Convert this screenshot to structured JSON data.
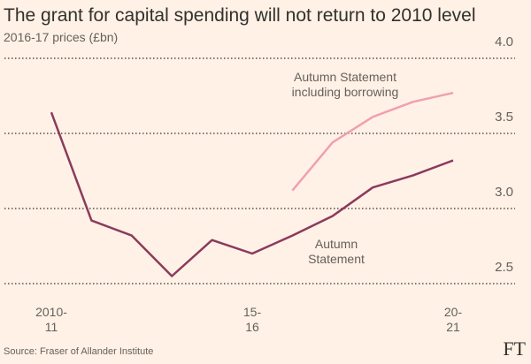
{
  "chart_data": {
    "type": "line",
    "title": "The grant for capital spending will not return to 2010 level",
    "subtitle": "2016-17 prices (£bn)",
    "source": "Source: Fraser of Allander Institute",
    "logo": "FT",
    "categories": [
      "2010-\n11",
      null,
      null,
      null,
      null,
      "15-\n16",
      null,
      null,
      null,
      null,
      "20-\n21"
    ],
    "series": [
      {
        "name": "Autumn\nStatement",
        "color": "#8b3a5e",
        "values": [
          3.64,
          2.92,
          2.82,
          2.55,
          2.79,
          2.7,
          2.82,
          2.95,
          3.14,
          3.22,
          3.32
        ]
      },
      {
        "name": "Autumn Statement\nincluding borrowing",
        "color": "#f0a0ae",
        "values": [
          null,
          null,
          null,
          null,
          null,
          null,
          3.12,
          3.44,
          3.61,
          3.71,
          3.77
        ]
      }
    ],
    "ylim": [
      2.5,
      4.0
    ],
    "yticks": [
      {
        "value": 4,
        "label": "4.0"
      },
      3.5,
      {
        "value": 3,
        "label": "3.0"
      },
      2.5
    ],
    "grid": true
  }
}
